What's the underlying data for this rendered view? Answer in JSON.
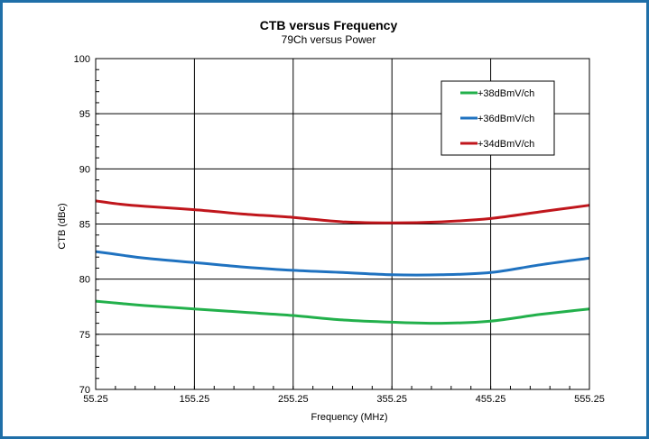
{
  "chart_data": {
    "type": "line",
    "title": "CTB versus Frequency",
    "subtitle": "79Ch versus Power",
    "xlabel": "Frequency (MHz)",
    "ylabel": "CTB (dBc)",
    "xlim": [
      55.25,
      555.25
    ],
    "ylim": [
      70,
      100
    ],
    "x_ticks": [
      "55.25",
      "155.25",
      "255.25",
      "355.25",
      "455.25",
      "555.25"
    ],
    "y_ticks": [
      "70",
      "75",
      "80",
      "85",
      "90",
      "95",
      "100"
    ],
    "grid": true,
    "legend_position": "top-right",
    "series": [
      {
        "name": "+38dBmV/ch",
        "color": "#22b04b",
        "x": [
          55.25,
          80.25,
          105.25,
          155.25,
          205.25,
          255.25,
          305.25,
          355.25,
          405.25,
          455.25,
          505.25,
          555.25
        ],
        "y": [
          78.0,
          77.8,
          77.6,
          77.3,
          77.0,
          76.7,
          76.3,
          76.1,
          76.0,
          76.2,
          76.8,
          77.3
        ]
      },
      {
        "name": "+36dBmV/ch",
        "color": "#1f72c0",
        "x": [
          55.25,
          80.25,
          105.25,
          155.25,
          205.25,
          255.25,
          305.25,
          355.25,
          405.25,
          455.25,
          505.25,
          555.25
        ],
        "y": [
          82.5,
          82.2,
          81.9,
          81.5,
          81.1,
          80.8,
          80.6,
          80.4,
          80.4,
          80.6,
          81.3,
          81.9
        ]
      },
      {
        "name": "+34dBmV/ch",
        "color": "#c0161c",
        "x": [
          55.25,
          80.25,
          105.25,
          155.25,
          205.25,
          255.25,
          305.25,
          355.25,
          405.25,
          455.25,
          505.25,
          555.25
        ],
        "y": [
          87.1,
          86.8,
          86.6,
          86.3,
          85.9,
          85.6,
          85.2,
          85.1,
          85.2,
          85.5,
          86.1,
          86.7
        ]
      }
    ]
  }
}
